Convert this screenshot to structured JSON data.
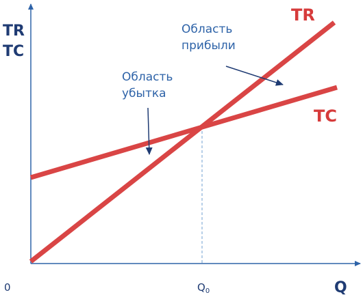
{
  "axis": {
    "y_label": [
      "TR",
      "TC"
    ],
    "x_label": "Q",
    "origin": "0",
    "break_even": {
      "letter": "Q",
      "subscript": "0"
    }
  },
  "lines": {
    "tr": "TR",
    "tc": "TC"
  },
  "annotations": [
    {
      "text": [
        "Область",
        "прибыли"
      ]
    },
    {
      "text": [
        "Область",
        "убытка"
      ]
    }
  ]
}
